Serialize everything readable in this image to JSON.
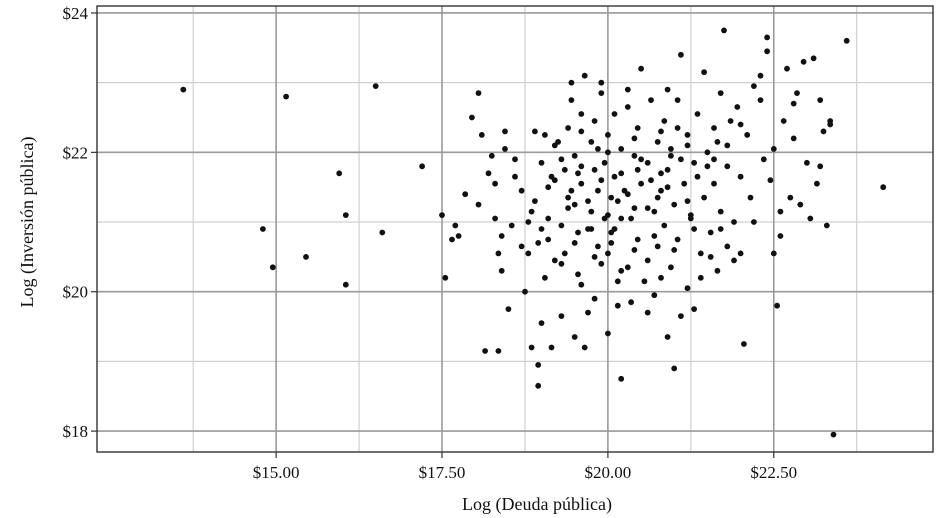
{
  "chart_data": {
    "type": "scatter",
    "xlabel": "Log (Deuda pública)",
    "ylabel": "Log (Inversión pública)",
    "xlim": [
      12.3,
      24.9
    ],
    "ylim": [
      17.7,
      24.1
    ],
    "x_ticks": [
      15,
      17.5,
      20,
      22.5
    ],
    "x_tick_labels": [
      "$15.00",
      "$17.50",
      "$20.00",
      "$22.50"
    ],
    "y_ticks": [
      18,
      20,
      22,
      24
    ],
    "y_tick_labels": [
      "$18",
      "$20",
      "$22",
      "$24"
    ],
    "x_minor_grid": [
      13.75,
      16.25,
      18.75,
      21.25,
      23.75
    ],
    "y_minor_grid": [
      19,
      21,
      23
    ],
    "grid": true,
    "legend": "none",
    "points": [
      [
        13.6,
        22.9
      ],
      [
        15.15,
        22.8
      ],
      [
        14.8,
        20.9
      ],
      [
        14.95,
        20.35
      ],
      [
        15.45,
        20.5
      ],
      [
        15.95,
        21.7
      ],
      [
        16.05,
        21.1
      ],
      [
        16.05,
        20.1
      ],
      [
        16.5,
        22.95
      ],
      [
        16.6,
        20.85
      ],
      [
        17.2,
        21.8
      ],
      [
        17.5,
        21.1
      ],
      [
        17.55,
        20.2
      ],
      [
        17.65,
        20.75
      ],
      [
        17.7,
        20.95
      ],
      [
        17.75,
        20.8
      ],
      [
        17.85,
        21.4
      ],
      [
        17.95,
        22.5
      ],
      [
        18.05,
        22.85
      ],
      [
        18.1,
        22.25
      ],
      [
        18.15,
        19.15
      ],
      [
        18.35,
        19.15
      ],
      [
        18.05,
        21.25
      ],
      [
        18.2,
        21.7
      ],
      [
        18.25,
        21.95
      ],
      [
        18.3,
        21.05
      ],
      [
        18.3,
        21.55
      ],
      [
        18.4,
        20.8
      ],
      [
        18.4,
        20.3
      ],
      [
        18.45,
        22.05
      ],
      [
        18.45,
        22.3
      ],
      [
        18.5,
        19.75
      ],
      [
        18.6,
        21.65
      ],
      [
        18.7,
        21.45
      ],
      [
        18.7,
        20.65
      ],
      [
        18.75,
        20.0
      ],
      [
        18.8,
        20.55
      ],
      [
        18.8,
        21.0
      ],
      [
        18.85,
        19.2
      ],
      [
        18.9,
        21.3
      ],
      [
        18.95,
        20.7
      ],
      [
        18.95,
        18.95
      ],
      [
        18.95,
        18.65
      ],
      [
        19.0,
        19.55
      ],
      [
        19.0,
        21.85
      ],
      [
        19.05,
        22.25
      ],
      [
        19.05,
        20.2
      ],
      [
        19.1,
        21.05
      ],
      [
        19.1,
        20.75
      ],
      [
        19.15,
        19.2
      ],
      [
        19.2,
        20.45
      ],
      [
        19.2,
        21.6
      ],
      [
        19.25,
        22.15
      ],
      [
        19.3,
        20.95
      ],
      [
        19.3,
        19.65
      ],
      [
        19.35,
        21.75
      ],
      [
        19.35,
        20.55
      ],
      [
        19.4,
        21.35
      ],
      [
        19.4,
        22.35
      ],
      [
        19.45,
        22.75
      ],
      [
        19.45,
        23.0
      ],
      [
        19.5,
        19.35
      ],
      [
        19.5,
        21.25
      ],
      [
        19.5,
        21.95
      ],
      [
        19.55,
        20.85
      ],
      [
        19.55,
        20.25
      ],
      [
        19.6,
        22.55
      ],
      [
        19.6,
        21.55
      ],
      [
        19.65,
        23.1
      ],
      [
        19.65,
        19.2
      ],
      [
        19.7,
        19.7
      ],
      [
        19.7,
        20.9
      ],
      [
        19.75,
        22.15
      ],
      [
        19.75,
        21.15
      ],
      [
        19.8,
        21.75
      ],
      [
        19.8,
        22.45
      ],
      [
        19.85,
        20.65
      ],
      [
        19.85,
        21.45
      ],
      [
        19.9,
        22.85
      ],
      [
        19.9,
        20.4
      ],
      [
        19.95,
        21.05
      ],
      [
        19.95,
        21.85
      ],
      [
        20.0,
        20.55
      ],
      [
        20.0,
        22.25
      ],
      [
        20.0,
        19.4
      ],
      [
        20.05,
        21.35
      ],
      [
        20.05,
        20.85
      ],
      [
        20.1,
        22.55
      ],
      [
        20.1,
        21.65
      ],
      [
        20.15,
        19.8
      ],
      [
        20.15,
        20.15
      ],
      [
        20.2,
        21.05
      ],
      [
        20.2,
        22.05
      ],
      [
        20.2,
        18.75
      ],
      [
        20.25,
        21.45
      ],
      [
        20.3,
        22.65
      ],
      [
        20.3,
        20.35
      ],
      [
        20.35,
        19.85
      ],
      [
        20.4,
        21.2
      ],
      [
        20.4,
        21.95
      ],
      [
        20.45,
        20.75
      ],
      [
        20.45,
        22.35
      ],
      [
        20.5,
        21.55
      ],
      [
        20.5,
        23.2
      ],
      [
        20.55,
        20.15
      ],
      [
        20.6,
        21.85
      ],
      [
        20.6,
        20.45
      ],
      [
        20.65,
        22.75
      ],
      [
        20.7,
        21.15
      ],
      [
        20.7,
        19.95
      ],
      [
        20.75,
        20.65
      ],
      [
        20.75,
        22.15
      ],
      [
        20.8,
        21.45
      ],
      [
        20.85,
        20.95
      ],
      [
        20.85,
        22.45
      ],
      [
        20.9,
        19.35
      ],
      [
        20.9,
        21.75
      ],
      [
        20.95,
        20.35
      ],
      [
        20.95,
        22.05
      ],
      [
        21.0,
        18.9
      ],
      [
        21.0,
        21.25
      ],
      [
        21.05,
        22.75
      ],
      [
        21.05,
        20.75
      ],
      [
        21.1,
        23.4
      ],
      [
        21.1,
        19.65
      ],
      [
        21.15,
        21.55
      ],
      [
        21.2,
        22.25
      ],
      [
        21.2,
        20.05
      ],
      [
        21.25,
        21.05
      ],
      [
        21.3,
        21.85
      ],
      [
        21.3,
        19.75
      ],
      [
        21.35,
        22.55
      ],
      [
        21.4,
        20.55
      ],
      [
        21.45,
        23.15
      ],
      [
        21.45,
        21.35
      ],
      [
        21.5,
        22.0
      ],
      [
        21.55,
        20.85
      ],
      [
        21.6,
        22.35
      ],
      [
        21.6,
        21.55
      ],
      [
        21.65,
        20.3
      ],
      [
        21.7,
        22.85
      ],
      [
        21.7,
        21.15
      ],
      [
        21.75,
        23.75
      ],
      [
        21.8,
        21.8
      ],
      [
        21.8,
        20.65
      ],
      [
        21.85,
        22.45
      ],
      [
        21.9,
        21.0
      ],
      [
        21.9,
        20.45
      ],
      [
        21.95,
        22.65
      ],
      [
        22.0,
        21.65
      ],
      [
        22.0,
        20.55
      ],
      [
        22.05,
        19.25
      ],
      [
        22.1,
        22.25
      ],
      [
        22.15,
        21.35
      ],
      [
        22.2,
        22.95
      ],
      [
        22.3,
        22.75
      ],
      [
        22.35,
        21.9
      ],
      [
        22.4,
        23.45
      ],
      [
        22.4,
        23.65
      ],
      [
        22.5,
        22.05
      ],
      [
        22.5,
        20.55
      ],
      [
        22.55,
        19.8
      ],
      [
        22.6,
        20.8
      ],
      [
        22.6,
        21.15
      ],
      [
        22.65,
        22.45
      ],
      [
        22.7,
        23.2
      ],
      [
        22.75,
        21.35
      ],
      [
        22.8,
        22.7
      ],
      [
        22.85,
        22.85
      ],
      [
        22.9,
        21.25
      ],
      [
        22.95,
        23.3
      ],
      [
        23.0,
        21.85
      ],
      [
        23.05,
        21.05
      ],
      [
        23.1,
        23.35
      ],
      [
        23.15,
        21.55
      ],
      [
        23.2,
        22.75
      ],
      [
        23.2,
        21.8
      ],
      [
        23.25,
        22.3
      ],
      [
        23.3,
        20.95
      ],
      [
        23.35,
        22.45
      ],
      [
        23.35,
        22.4
      ],
      [
        23.4,
        17.95
      ],
      [
        23.6,
        23.6
      ],
      [
        24.15,
        21.5
      ],
      [
        19.3,
        21.9
      ],
      [
        19.6,
        21.8
      ],
      [
        19.9,
        21.6
      ],
      [
        20.2,
        21.7
      ],
      [
        20.5,
        21.9
      ],
      [
        20.8,
        21.7
      ],
      [
        21.1,
        21.9
      ],
      [
        19.4,
        21.2
      ],
      [
        19.7,
        21.3
      ],
      [
        20.0,
        21.1
      ],
      [
        20.3,
        21.4
      ],
      [
        20.6,
        21.2
      ],
      [
        20.9,
        21.5
      ],
      [
        21.2,
        21.3
      ],
      [
        19.5,
        20.7
      ],
      [
        19.8,
        20.5
      ],
      [
        20.1,
        20.9
      ],
      [
        20.4,
        20.6
      ],
      [
        20.7,
        20.8
      ],
      [
        21.0,
        20.6
      ],
      [
        19.2,
        22.1
      ],
      [
        19.6,
        22.3
      ],
      [
        20.0,
        22.0
      ],
      [
        20.4,
        22.2
      ],
      [
        20.8,
        22.3
      ],
      [
        21.2,
        22.1
      ],
      [
        21.6,
        21.9
      ],
      [
        19.9,
        23.0
      ],
      [
        20.3,
        22.9
      ],
      [
        20.9,
        22.9
      ],
      [
        18.6,
        21.9
      ],
      [
        18.9,
        22.3
      ],
      [
        19.1,
        21.5
      ],
      [
        19.8,
        19.9
      ],
      [
        20.6,
        19.7
      ],
      [
        21.4,
        20.2
      ],
      [
        21.7,
        20.9
      ],
      [
        22.2,
        21.0
      ],
      [
        22.45,
        21.6
      ],
      [
        22.8,
        22.2
      ],
      [
        19.0,
        20.9
      ],
      [
        19.3,
        20.4
      ],
      [
        19.6,
        20.1
      ],
      [
        20.2,
        20.3
      ],
      [
        20.8,
        20.2
      ],
      [
        21.3,
        20.9
      ],
      [
        21.5,
        21.8
      ],
      [
        21.8,
        22.1
      ],
      [
        22.0,
        22.4
      ],
      [
        22.3,
        23.1
      ],
      [
        19.55,
        21.7
      ],
      [
        19.85,
        22.05
      ],
      [
        20.15,
        21.3
      ],
      [
        20.45,
        21.75
      ],
      [
        20.75,
        21.35
      ],
      [
        21.05,
        22.35
      ],
      [
        21.35,
        21.65
      ],
      [
        21.65,
        22.15
      ],
      [
        19.75,
        20.9
      ],
      [
        20.05,
        20.7
      ],
      [
        20.35,
        21.05
      ],
      [
        20.65,
        21.6
      ],
      [
        20.95,
        21.95
      ],
      [
        21.25,
        21.1
      ],
      [
        21.55,
        20.5
      ],
      [
        19.45,
        21.45
      ],
      [
        19.15,
        21.65
      ],
      [
        18.85,
        21.15
      ],
      [
        18.55,
        20.95
      ],
      [
        18.35,
        20.55
      ]
    ]
  }
}
